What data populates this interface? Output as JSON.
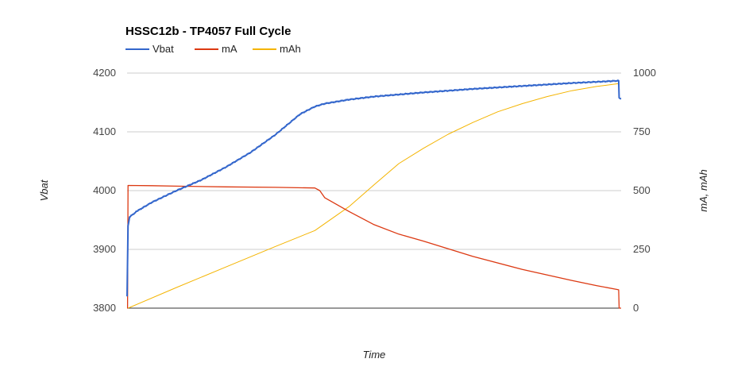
{
  "chart_data": {
    "type": "line",
    "title": "HSSC12b - TP4057 Full Cycle",
    "xlabel": "Time",
    "ylabel_left": "Vbat",
    "ylabel_right": "mA, mAh",
    "y_left_ticks": [
      3800,
      3900,
      4000,
      4100,
      4200
    ],
    "y_right_ticks": [
      0,
      250,
      500,
      750,
      1000
    ],
    "y_left_range": [
      3800,
      4200
    ],
    "y_right_range": [
      0,
      1000
    ],
    "x_range": [
      0,
      100
    ],
    "grid": true,
    "legend_position": "top-left",
    "series": [
      {
        "name": "Vbat",
        "axis": "left",
        "color": "#3366cc",
        "x": [
          0,
          0.2,
          0.5,
          2,
          5,
          10,
          15,
          20,
          25,
          30,
          35,
          38,
          40,
          45,
          50,
          60,
          70,
          80,
          90,
          95,
          99.5,
          99.6,
          100
        ],
        "y": [
          3820,
          3940,
          3955,
          3965,
          3980,
          4000,
          4018,
          4040,
          4065,
          4095,
          4130,
          4143,
          4148,
          4155,
          4160,
          4167,
          4173,
          4178,
          4183,
          4185,
          4187,
          4158,
          4156
        ]
      },
      {
        "name": "mA",
        "axis": "right",
        "color": "#dc3912",
        "x": [
          0,
          0.1,
          0.2,
          5,
          10,
          20,
          30,
          38,
          39,
          40,
          45,
          50,
          55,
          60,
          70,
          80,
          90,
          95,
          99.5,
          99.6,
          100
        ],
        "y": [
          0,
          0,
          522,
          521,
          519,
          516,
          514,
          511,
          500,
          470,
          410,
          355,
          315,
          285,
          220,
          165,
          118,
          96,
          78,
          0,
          0
        ]
      },
      {
        "name": "mAh",
        "axis": "right",
        "color": "#f4b400",
        "x": [
          0.2,
          10,
          20,
          30,
          38,
          45,
          50,
          55,
          60,
          65,
          70,
          75,
          80,
          85,
          90,
          95,
          99.5
        ],
        "y": [
          0,
          88,
          175,
          262,
          330,
          433,
          525,
          615,
          680,
          740,
          790,
          835,
          870,
          900,
          925,
          943,
          955
        ]
      }
    ]
  }
}
